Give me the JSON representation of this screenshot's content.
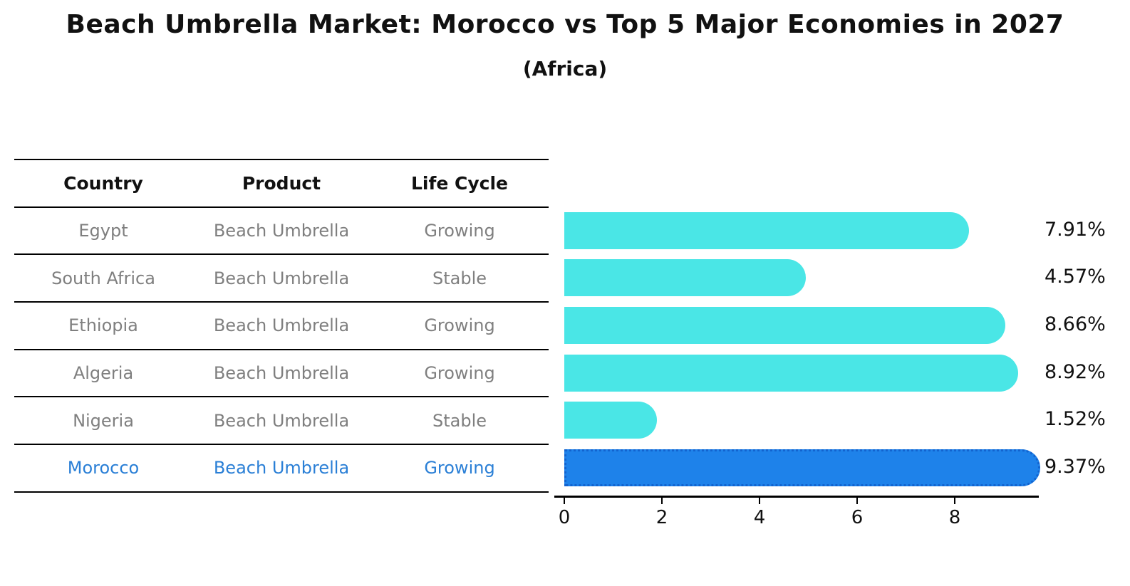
{
  "header": {
    "title": "Beach Umbrella Market: Morocco vs Top 5 Major Economies in 2027",
    "subtitle": "(Africa)"
  },
  "table": {
    "headers": [
      "Country",
      "Product",
      "Life Cycle"
    ],
    "highlight_row_index": 5,
    "rows": [
      {
        "country": "Egypt",
        "product": "Beach Umbrella",
        "life_cycle": "Growing"
      },
      {
        "country": "South Africa",
        "product": "Beach Umbrella",
        "life_cycle": "Stable"
      },
      {
        "country": "Ethiopia",
        "product": "Beach Umbrella",
        "life_cycle": "Growing"
      },
      {
        "country": "Algeria",
        "product": "Beach Umbrella",
        "life_cycle": "Growing"
      },
      {
        "country": "Nigeria",
        "product": "Beach Umbrella",
        "life_cycle": "Stable"
      },
      {
        "country": "Morocco",
        "product": "Beach Umbrella",
        "life_cycle": "Growing"
      }
    ]
  },
  "chart_data": {
    "type": "bar",
    "orientation": "horizontal",
    "title": "Beach Umbrella Market: Morocco vs Top 5 Major Economies in 2027 (Africa)",
    "categories": [
      "Egypt",
      "South Africa",
      "Ethiopia",
      "Algeria",
      "Nigeria",
      "Morocco"
    ],
    "values": [
      7.91,
      4.57,
      8.66,
      8.92,
      1.52,
      9.37
    ],
    "value_labels": [
      "7.91%",
      "4.57%",
      "8.66%",
      "8.92%",
      "1.52%",
      "9.37%"
    ],
    "x_ticks": [
      0,
      2,
      4,
      6,
      8
    ],
    "xlim": [
      0,
      9.7
    ],
    "grid": false,
    "legend": "none",
    "highlight_index": 5,
    "bar_color": "#4ae6e6",
    "highlight_color": "#1e82ea",
    "highlight_border_color": "#1263cf",
    "label_color": "#111111"
  }
}
